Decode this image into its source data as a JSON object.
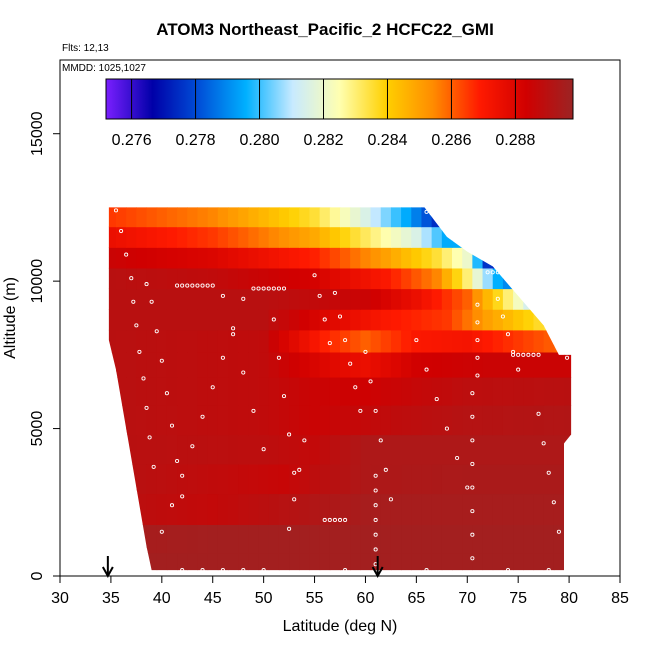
{
  "chart_data": {
    "type": "heatmap",
    "title": "ATOM3 Northeast_Pacific_2 HCFC22_GMI",
    "flights_label": "Flts: 12,13",
    "mmdd_label": "MMDD: 1025,1027",
    "xlabel": "Latitude (deg N)",
    "ylabel": "Altitude (m)",
    "xlim": [
      30,
      85
    ],
    "ylim": [
      0,
      17500
    ],
    "x_ticks": [
      "30",
      "35",
      "40",
      "45",
      "50",
      "55",
      "60",
      "65",
      "70",
      "75",
      "80",
      "85"
    ],
    "y_ticks": [
      "0",
      "5000",
      "10000",
      "15000"
    ],
    "colorbar": {
      "range": [
        0.2752,
        0.2898
      ],
      "tick_labels": [
        "0.276",
        "0.278",
        "0.280",
        "0.282",
        "0.284",
        "0.286",
        "0.288"
      ],
      "tick_values": [
        0.276,
        0.278,
        0.28,
        0.282,
        0.284,
        0.286,
        0.288
      ],
      "colors": [
        "#7a1fff",
        "#0000a8",
        "#0050d8",
        "#00b0ff",
        "#c8eaff",
        "#ffffb0",
        "#ffd000",
        "#ff8c00",
        "#ff1a00",
        "#d00000",
        "#9c2424"
      ]
    },
    "arrows_latitude": [
      34.7,
      61.2
    ],
    "curtain_outline": [
      [
        34.8,
        12500
      ],
      [
        65.8,
        12500
      ],
      [
        68,
        11500
      ],
      [
        70,
        11000
      ],
      [
        72.5,
        10500
      ],
      [
        75,
        9500
      ],
      [
        77.5,
        8500
      ],
      [
        79,
        7500
      ],
      [
        80.2,
        7500
      ],
      [
        80.2,
        4800
      ],
      [
        79.5,
        4500
      ],
      [
        79.5,
        200
      ],
      [
        39,
        200
      ],
      [
        38.5,
        1000
      ],
      [
        37.5,
        3000
      ],
      [
        36.5,
        5000
      ],
      [
        35.5,
        7000
      ],
      [
        34.8,
        8000
      ],
      [
        34.8,
        10500
      ]
    ],
    "bands": [
      {
        "alt": 12200,
        "lat": [
          35,
          45,
          55,
          60,
          64,
          67
        ],
        "val": [
          0.2865,
          0.2855,
          0.2835,
          0.2815,
          0.2795,
          0.2775
        ]
      },
      {
        "alt": 11500,
        "lat": [
          35,
          45,
          55,
          60,
          65,
          68
        ],
        "val": [
          0.2875,
          0.2865,
          0.2848,
          0.2832,
          0.2815,
          0.2795
        ]
      },
      {
        "alt": 10800,
        "lat": [
          35,
          45,
          55,
          62,
          67,
          70,
          72.5
        ],
        "val": [
          0.2885,
          0.288,
          0.2868,
          0.285,
          0.2835,
          0.282,
          0.2765
        ]
      },
      {
        "alt": 10100,
        "lat": [
          35,
          45,
          55,
          62,
          67,
          70,
          73.5
        ],
        "val": [
          0.289,
          0.2888,
          0.2882,
          0.287,
          0.2855,
          0.283,
          0.279
        ]
      },
      {
        "alt": 9400,
        "lat": [
          35,
          50,
          60,
          65,
          70,
          74,
          76.5
        ],
        "val": [
          0.289,
          0.289,
          0.2885,
          0.2875,
          0.286,
          0.283,
          0.281
        ]
      },
      {
        "alt": 8700,
        "lat": [
          35,
          50,
          57,
          62,
          68,
          72,
          77.5
        ],
        "val": [
          0.289,
          0.289,
          0.2878,
          0.287,
          0.2865,
          0.285,
          0.2835
        ]
      },
      {
        "alt": 8000,
        "lat": [
          35,
          50,
          56,
          60,
          65,
          70,
          78.5
        ],
        "val": [
          0.289,
          0.2888,
          0.2868,
          0.286,
          0.287,
          0.2872,
          0.286
        ]
      },
      {
        "alt": 7200,
        "lat": [
          35,
          50,
          57,
          60,
          65,
          72,
          80
        ],
        "val": [
          0.289,
          0.2888,
          0.2878,
          0.2875,
          0.2883,
          0.2885,
          0.2885
        ]
      },
      {
        "alt": 6300,
        "lat": [
          35,
          50,
          55,
          60,
          70,
          80
        ],
        "val": [
          0.289,
          0.2888,
          0.2885,
          0.2884,
          0.2889,
          0.289
        ]
      },
      {
        "alt": 5300,
        "lat": [
          36,
          50,
          55,
          62,
          70,
          80
        ],
        "val": [
          0.289,
          0.2888,
          0.2885,
          0.2888,
          0.2891,
          0.2892
        ]
      },
      {
        "alt": 4300,
        "lat": [
          37,
          50,
          55,
          60,
          70,
          80
        ],
        "val": [
          0.289,
          0.2889,
          0.2887,
          0.2893,
          0.2893,
          0.2893
        ]
      },
      {
        "alt": 3300,
        "lat": [
          37.5,
          45,
          52,
          60,
          70,
          80
        ],
        "val": [
          0.289,
          0.2888,
          0.2886,
          0.2893,
          0.2894,
          0.2894
        ]
      },
      {
        "alt": 2300,
        "lat": [
          38,
          45,
          51,
          60,
          70,
          80
        ],
        "val": [
          0.2889,
          0.2887,
          0.289,
          0.2895,
          0.2895,
          0.2895
        ]
      },
      {
        "alt": 1200,
        "lat": [
          38.5,
          45,
          55,
          65,
          80
        ],
        "val": [
          0.2895,
          0.2896,
          0.2896,
          0.2896,
          0.2896
        ]
      },
      {
        "alt": 400,
        "lat": [
          39,
          50,
          65,
          80
        ],
        "val": [
          0.2896,
          0.2896,
          0.2896,
          0.2896
        ]
      }
    ],
    "observation_tracks": [
      {
        "lat": [
          35.5,
          36,
          36.5,
          37,
          37.2,
          37.5,
          37.8,
          38.2,
          38.5,
          38.8,
          39.2
        ],
        "alt": [
          12400,
          11700,
          10900,
          10100,
          9300,
          8500,
          7600,
          6700,
          5700,
          4700,
          3700
        ]
      },
      {
        "lat": [
          38.5,
          39,
          39.5,
          40,
          40.5,
          41,
          41.5,
          42
        ],
        "alt": [
          9900,
          9300,
          8300,
          7300,
          6200,
          5100,
          3900,
          2700
        ]
      },
      {
        "lat": [
          41.5,
          42,
          42.5,
          43,
          43.5,
          44,
          44.5,
          45
        ],
        "alt": [
          9850,
          9850,
          9850,
          9850,
          9850,
          9850,
          9850,
          9850
        ]
      },
      {
        "lat": [
          40,
          41,
          42,
          43,
          44,
          45,
          46,
          47,
          48
        ],
        "alt": [
          1500,
          2400,
          3400,
          4400,
          5400,
          6400,
          7400,
          8400,
          9400
        ]
      },
      {
        "lat": [
          46,
          47,
          48,
          49,
          50
        ],
        "alt": [
          9500,
          8200,
          6900,
          5600,
          4300
        ]
      },
      {
        "lat": [
          49,
          49.5,
          50,
          50.5,
          51,
          51.5,
          52
        ],
        "alt": [
          9750,
          9750,
          9750,
          9750,
          9750,
          9750,
          9750
        ]
      },
      {
        "lat": [
          51,
          51.5,
          52,
          52.5,
          53
        ],
        "alt": [
          8700,
          7400,
          6100,
          4800,
          3500
        ]
      },
      {
        "lat": [
          52.5,
          53,
          53.5,
          54
        ],
        "alt": [
          1600,
          2600,
          3600,
          4600
        ]
      },
      {
        "lat": [
          55,
          55.5,
          56,
          56.5
        ],
        "alt": [
          10200,
          9500,
          8700,
          7900
        ]
      },
      {
        "lat": [
          57,
          57.5,
          58,
          58.5,
          59,
          59.5
        ],
        "alt": [
          9600,
          8800,
          8000,
          7200,
          6400,
          5600
        ]
      },
      {
        "lat": [
          56,
          56.5,
          57,
          57.5,
          58
        ],
        "alt": [
          1900,
          1900,
          1900,
          1900,
          1900
        ]
      },
      {
        "lat": [
          60,
          60.5,
          61,
          61.5,
          62,
          62.5
        ],
        "alt": [
          7600,
          6600,
          5600,
          4600,
          3600,
          2600
        ]
      },
      {
        "lat": [
          61,
          61,
          61,
          61,
          61,
          61,
          61
        ],
        "alt": [
          400,
          900,
          1400,
          1900,
          2400,
          2900,
          3400
        ]
      },
      {
        "lat": [
          66,
          66.5,
          67,
          67.5,
          68,
          68.5,
          69,
          69.5
        ],
        "alt": [
          12350,
          12300,
          12250,
          12200,
          12150,
          12100,
          12050,
          12000
        ]
      },
      {
        "lat": [
          65,
          66,
          67,
          68,
          69,
          70
        ],
        "alt": [
          8000,
          7000,
          6000,
          5000,
          4000,
          3000
        ]
      },
      {
        "lat": [
          70.5,
          70.5,
          70.5,
          70.5,
          70.5,
          70.5,
          70.5,
          70.5
        ],
        "alt": [
          600,
          1400,
          2200,
          3000,
          3800,
          4600,
          5400,
          6200
        ]
      },
      {
        "lat": [
          71,
          71,
          71,
          71,
          71
        ],
        "alt": [
          6800,
          7400,
          8000,
          8600,
          9200
        ]
      },
      {
        "lat": [
          72,
          72.5,
          73,
          73.5
        ],
        "alt": [
          10300,
          10300,
          10300,
          10300
        ]
      },
      {
        "lat": [
          73,
          73.5,
          74,
          74.5,
          75
        ],
        "alt": [
          9400,
          8800,
          8200,
          7600,
          7000
        ]
      },
      {
        "lat": [
          74.5,
          75,
          75.5,
          76,
          76.5,
          77
        ],
        "alt": [
          7500,
          7500,
          7500,
          7500,
          7500,
          7500
        ]
      },
      {
        "lat": [
          77,
          77.5,
          78,
          78.5,
          79
        ],
        "alt": [
          5500,
          4500,
          3500,
          2500,
          1500
        ]
      },
      {
        "lat": [
          42,
          44,
          46,
          48,
          50,
          58,
          66,
          74,
          78
        ],
        "alt": [
          200,
          200,
          200,
          200,
          200,
          200,
          200,
          200,
          200
        ]
      },
      {
        "lat": [
          79.8
        ],
        "alt": [
          7400
        ]
      }
    ]
  }
}
